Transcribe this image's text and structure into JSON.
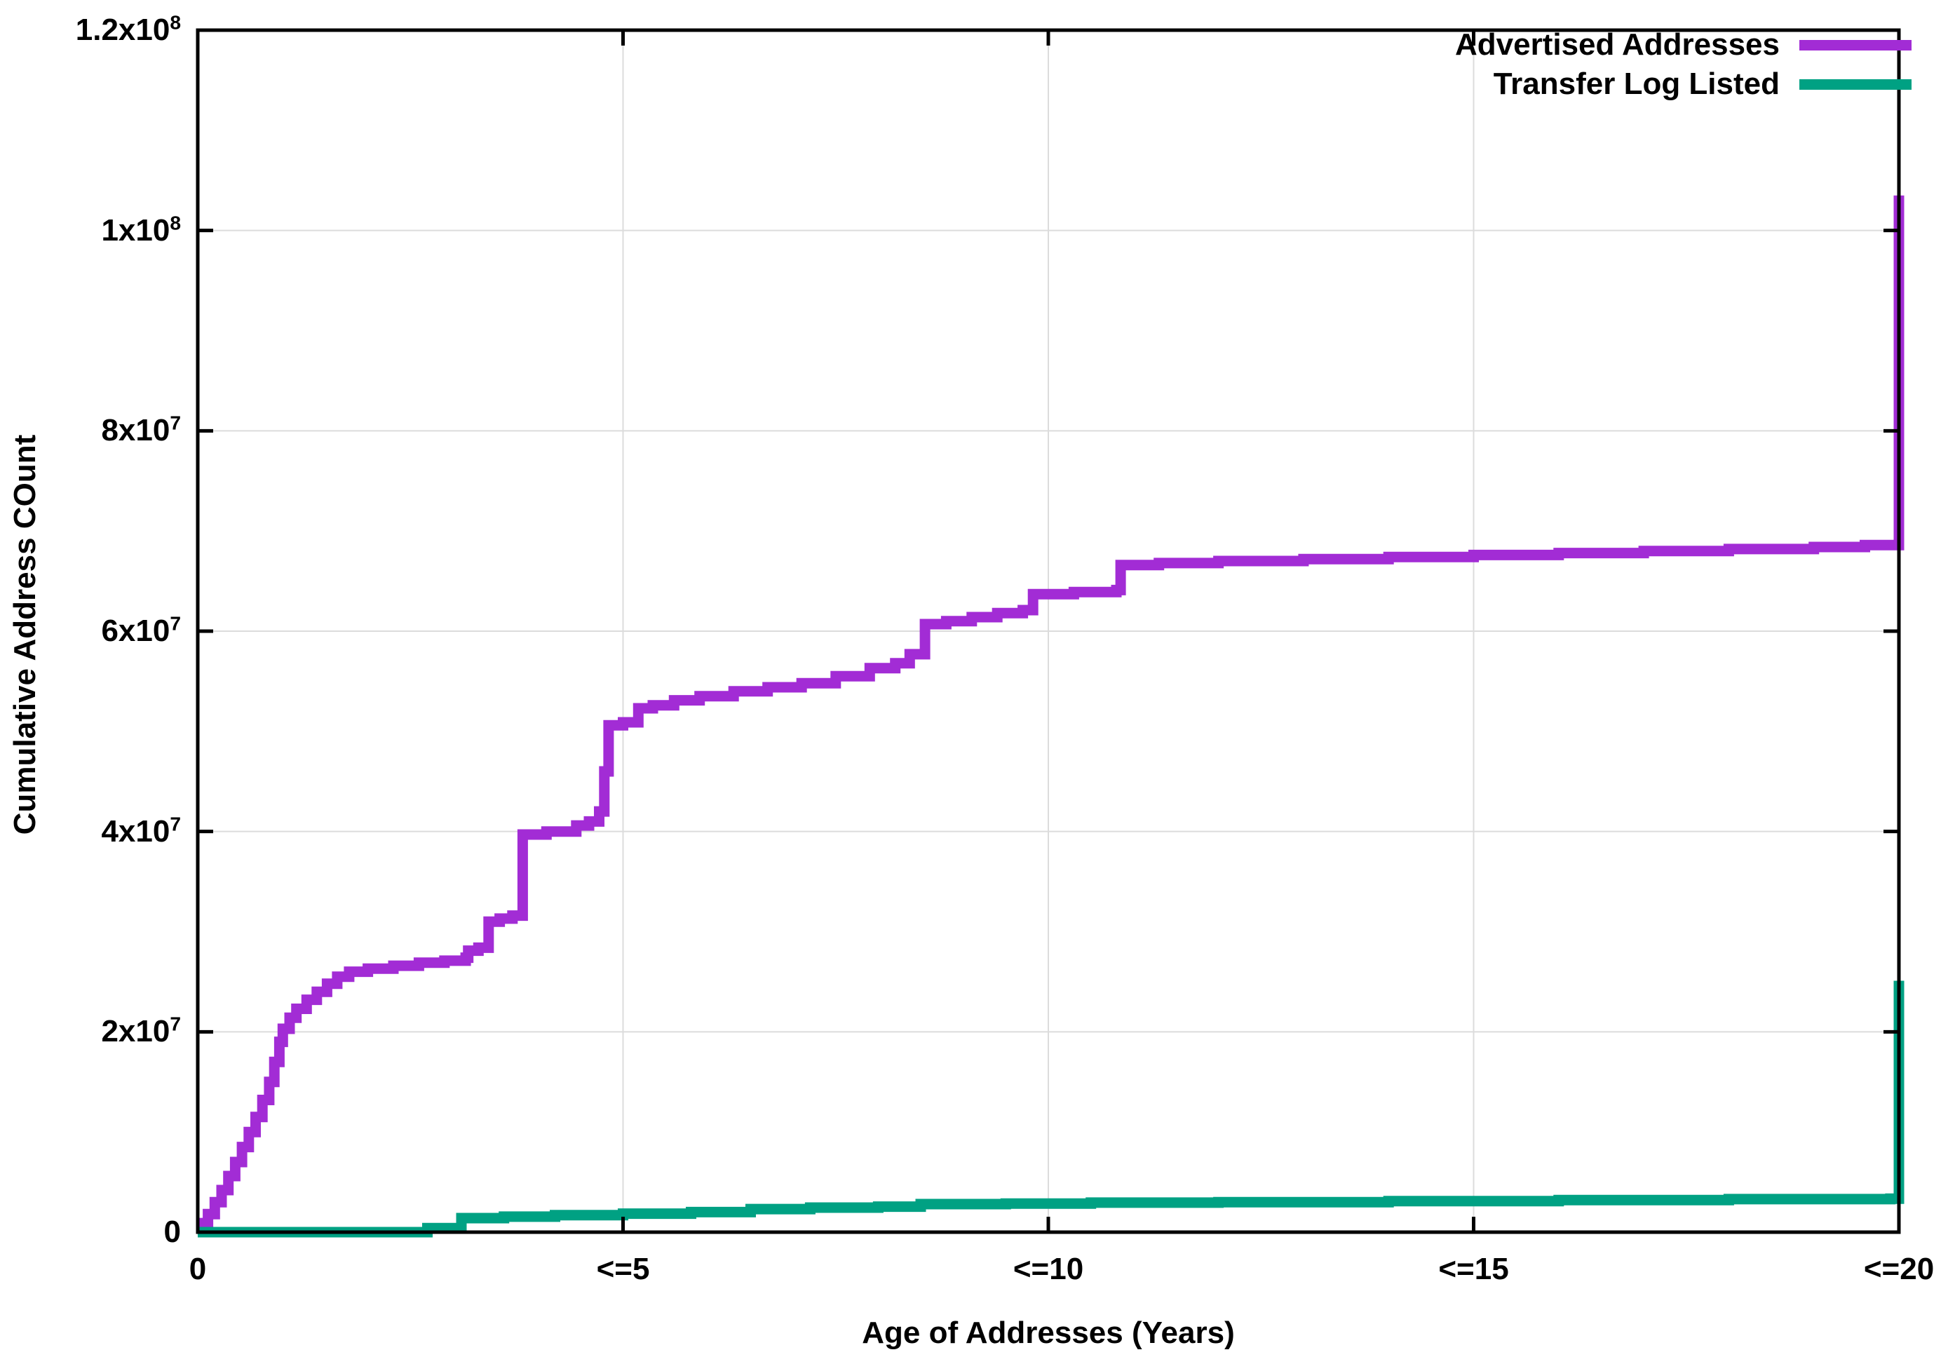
{
  "chart_data": {
    "type": "line",
    "title": "",
    "xlabel": "Age of Addresses (Years)",
    "ylabel": "Cumulative Address COunt",
    "xlim": [
      0,
      20
    ],
    "ylim": [
      0,
      120000000.0
    ],
    "grid": true,
    "grid_color": "#DCDCDC",
    "axis_color": "#000000",
    "legend_position": "inside-top-right",
    "x_ticks": [
      {
        "value": 0,
        "label": "0"
      },
      {
        "value": 5,
        "label": "<=5"
      },
      {
        "value": 10,
        "label": "<=10"
      },
      {
        "value": 15,
        "label": "<=15"
      },
      {
        "value": 20,
        "label": "<=20"
      }
    ],
    "y_ticks": [
      {
        "value": 0,
        "label": "0"
      },
      {
        "value": 20000000.0,
        "label": "2x10^7"
      },
      {
        "value": 40000000.0,
        "label": "4x10^7"
      },
      {
        "value": 60000000.0,
        "label": "6x10^7"
      },
      {
        "value": 80000000.0,
        "label": "8x10^7"
      },
      {
        "value": 100000000.0,
        "label": "1x10^8"
      },
      {
        "value": 120000000.0,
        "label": "1.2x10^8"
      }
    ],
    "series": [
      {
        "name": "Advertised Addresses",
        "color": "#A22CD5",
        "points": [
          [
            0,
            0
          ],
          [
            0.05,
            0
          ],
          [
            0.05,
            900000.0
          ],
          [
            0.12,
            900000.0
          ],
          [
            0.12,
            1800000.0
          ],
          [
            0.2,
            1800000.0
          ],
          [
            0.2,
            3000000.0
          ],
          [
            0.28,
            3000000.0
          ],
          [
            0.28,
            4200000.0
          ],
          [
            0.36,
            4200000.0
          ],
          [
            0.36,
            5600000.0
          ],
          [
            0.44,
            5600000.0
          ],
          [
            0.44,
            7000000.0
          ],
          [
            0.52,
            7000000.0
          ],
          [
            0.52,
            8500000.0
          ],
          [
            0.6,
            8500000.0
          ],
          [
            0.6,
            10000000.0
          ],
          [
            0.68,
            10000000.0
          ],
          [
            0.68,
            11500000.0
          ],
          [
            0.76,
            11500000.0
          ],
          [
            0.76,
            13200000.0
          ],
          [
            0.84,
            13200000.0
          ],
          [
            0.84,
            15000000.0
          ],
          [
            0.9,
            15000000.0
          ],
          [
            0.9,
            17000000.0
          ],
          [
            0.96,
            17000000.0
          ],
          [
            0.96,
            19000000.0
          ],
          [
            1.0,
            19000000.0
          ],
          [
            1.0,
            20300000.0
          ],
          [
            1.08,
            20300000.0
          ],
          [
            1.08,
            21400000.0
          ],
          [
            1.16,
            21400000.0
          ],
          [
            1.16,
            22300000.0
          ],
          [
            1.28,
            22300000.0
          ],
          [
            1.28,
            23200000.0
          ],
          [
            1.4,
            23200000.0
          ],
          [
            1.4,
            24000000.0
          ],
          [
            1.52,
            24000000.0
          ],
          [
            1.52,
            24800000.0
          ],
          [
            1.64,
            24800000.0
          ],
          [
            1.64,
            25500000.0
          ],
          [
            1.78,
            25500000.0
          ],
          [
            1.78,
            26000000.0
          ],
          [
            2.0,
            26000000.0
          ],
          [
            2.0,
            26300000.0
          ],
          [
            2.3,
            26300000.0
          ],
          [
            2.3,
            26600000.0
          ],
          [
            2.6,
            26600000.0
          ],
          [
            2.6,
            26900000.0
          ],
          [
            2.9,
            26900000.0
          ],
          [
            2.9,
            27100000.0
          ],
          [
            3.15,
            27100000.0
          ],
          [
            3.15,
            27400000.0
          ],
          [
            3.18,
            27400000.0
          ],
          [
            3.18,
            28100000.0
          ],
          [
            3.3,
            28100000.0
          ],
          [
            3.3,
            28400000.0
          ],
          [
            3.42,
            28400000.0
          ],
          [
            3.42,
            31000000.0
          ],
          [
            3.55,
            31000000.0
          ],
          [
            3.55,
            31300000.0
          ],
          [
            3.7,
            31300000.0
          ],
          [
            3.7,
            31600000.0
          ],
          [
            3.82,
            31600000.0
          ],
          [
            3.82,
            39700000.0
          ],
          [
            4.1,
            39700000.0
          ],
          [
            4.1,
            40000000.0
          ],
          [
            4.45,
            40000000.0
          ],
          [
            4.45,
            40600000.0
          ],
          [
            4.6,
            40600000.0
          ],
          [
            4.6,
            41000000.0
          ],
          [
            4.72,
            41000000.0
          ],
          [
            4.72,
            42000000.0
          ],
          [
            4.78,
            42000000.0
          ],
          [
            4.78,
            46000000.0
          ],
          [
            4.83,
            46000000.0
          ],
          [
            4.83,
            50600000.0
          ],
          [
            5.0,
            50600000.0
          ],
          [
            5.0,
            50900000.0
          ],
          [
            5.18,
            50900000.0
          ],
          [
            5.18,
            52300000.0
          ],
          [
            5.35,
            52300000.0
          ],
          [
            5.35,
            52600000.0
          ],
          [
            5.6,
            52600000.0
          ],
          [
            5.6,
            53100000.0
          ],
          [
            5.9,
            53100000.0
          ],
          [
            5.9,
            53500000.0
          ],
          [
            6.3,
            53500000.0
          ],
          [
            6.3,
            54000000.0
          ],
          [
            6.7,
            54000000.0
          ],
          [
            6.7,
            54400000.0
          ],
          [
            7.1,
            54400000.0
          ],
          [
            7.1,
            54800000.0
          ],
          [
            7.5,
            54800000.0
          ],
          [
            7.5,
            55500000.0
          ],
          [
            7.9,
            55500000.0
          ],
          [
            7.9,
            56300000.0
          ],
          [
            8.2,
            56300000.0
          ],
          [
            8.2,
            56800000.0
          ],
          [
            8.37,
            56800000.0
          ],
          [
            8.37,
            57700000.0
          ],
          [
            8.55,
            57700000.0
          ],
          [
            8.55,
            60700000.0
          ],
          [
            8.8,
            60700000.0
          ],
          [
            8.8,
            61000000.0
          ],
          [
            9.1,
            61000000.0
          ],
          [
            9.1,
            61400000.0
          ],
          [
            9.4,
            61400000.0
          ],
          [
            9.4,
            61800000.0
          ],
          [
            9.7,
            61800000.0
          ],
          [
            9.7,
            62100000.0
          ],
          [
            9.82,
            62100000.0
          ],
          [
            9.82,
            63700000.0
          ],
          [
            10.3,
            63700000.0
          ],
          [
            10.3,
            63900000.0
          ],
          [
            10.8,
            63900000.0
          ],
          [
            10.8,
            64100000.0
          ],
          [
            10.85,
            64100000.0
          ],
          [
            10.85,
            66600000.0
          ],
          [
            11.3,
            66600000.0
          ],
          [
            11.3,
            66800000.0
          ],
          [
            12.0,
            66800000.0
          ],
          [
            12.0,
            67000000.0
          ],
          [
            13.0,
            67000000.0
          ],
          [
            13.0,
            67200000.0
          ],
          [
            14.0,
            67200000.0
          ],
          [
            14.0,
            67400000.0
          ],
          [
            15.0,
            67400000.0
          ],
          [
            15.0,
            67600000.0
          ],
          [
            16.0,
            67600000.0
          ],
          [
            16.0,
            67800000.0
          ],
          [
            17.0,
            67800000.0
          ],
          [
            17.0,
            68000000.0
          ],
          [
            18.0,
            68000000.0
          ],
          [
            18.0,
            68200000.0
          ],
          [
            19.0,
            68200000.0
          ],
          [
            19.0,
            68400000.0
          ],
          [
            19.6,
            68400000.0
          ],
          [
            19.6,
            68600000.0
          ],
          [
            20,
            68600000.0
          ],
          [
            20,
            103500000.0
          ]
        ]
      },
      {
        "name": "Transfer Log Listed",
        "color": "#00A183",
        "points": [
          [
            0,
            0
          ],
          [
            2.7,
            0
          ],
          [
            2.7,
            400000.0
          ],
          [
            3.1,
            400000.0
          ],
          [
            3.1,
            1400000.0
          ],
          [
            3.6,
            1400000.0
          ],
          [
            3.6,
            1550000.0
          ],
          [
            4.2,
            1550000.0
          ],
          [
            4.2,
            1700000.0
          ],
          [
            5.0,
            1700000.0
          ],
          [
            5.0,
            1850000.0
          ],
          [
            5.8,
            1850000.0
          ],
          [
            5.8,
            2000000.0
          ],
          [
            6.5,
            2000000.0
          ],
          [
            6.5,
            2300000.0
          ],
          [
            7.2,
            2300000.0
          ],
          [
            7.2,
            2450000.0
          ],
          [
            8.0,
            2450000.0
          ],
          [
            8.0,
            2550000.0
          ],
          [
            8.5,
            2550000.0
          ],
          [
            8.5,
            2800000.0
          ],
          [
            9.5,
            2800000.0
          ],
          [
            9.5,
            2850000.0
          ],
          [
            10.5,
            2850000.0
          ],
          [
            10.5,
            2950000.0
          ],
          [
            12,
            2950000.0
          ],
          [
            12,
            3000000.0
          ],
          [
            14,
            3000000.0
          ],
          [
            14,
            3100000.0
          ],
          [
            16,
            3100000.0
          ],
          [
            16,
            3200000.0
          ],
          [
            18,
            3200000.0
          ],
          [
            18,
            3300000.0
          ],
          [
            19.9,
            3300000.0
          ],
          [
            19.9,
            3350000.0
          ],
          [
            20,
            3350000.0
          ],
          [
            20,
            25100000.0
          ]
        ]
      }
    ]
  }
}
